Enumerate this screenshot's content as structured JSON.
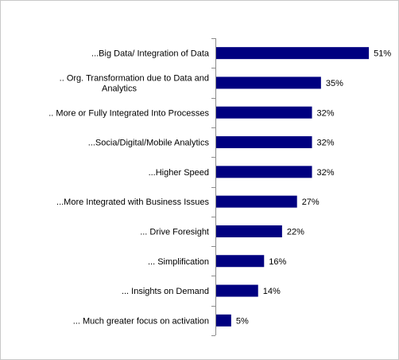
{
  "chart_data": {
    "type": "bar",
    "orientation": "horizontal",
    "categories": [
      "...Big Data/ Integration of Data",
      "..  Org. Transformation due to Data and Analytics",
      ".. More  or Fully Integrated Into Processes",
      "...Socia/Digital/Mobile Analytics",
      "...Higher Speed",
      "...More Integrated with Business Issues",
      "... Drive Foresight",
      "... Simplification",
      "... Insights on Demand",
      "... Much greater focus on activation"
    ],
    "label_lines": [
      [
        "...Big Data/ Integration of Data"
      ],
      [
        "..  Org. Transformation due to Data and",
        "Analytics"
      ],
      [
        ".. More  or Fully Integrated Into Processes"
      ],
      [
        "...Socia/Digital/Mobile Analytics"
      ],
      [
        "...Higher Speed"
      ],
      [
        "...More Integrated with Business Issues"
      ],
      [
        "... Drive Foresight"
      ],
      [
        "... Simplification"
      ],
      [
        "... Insights on Demand"
      ],
      [
        "... Much greater focus on activation"
      ]
    ],
    "values": [
      51,
      35,
      32,
      32,
      32,
      27,
      22,
      16,
      14,
      5
    ],
    "value_labels": [
      "51%",
      "35%",
      "32%",
      "32%",
      "32%",
      "27%",
      "22%",
      "16%",
      "14%",
      "5%"
    ],
    "xlim": [
      0,
      60
    ],
    "bar_color": "#000080",
    "grid": false,
    "legend": "none"
  }
}
